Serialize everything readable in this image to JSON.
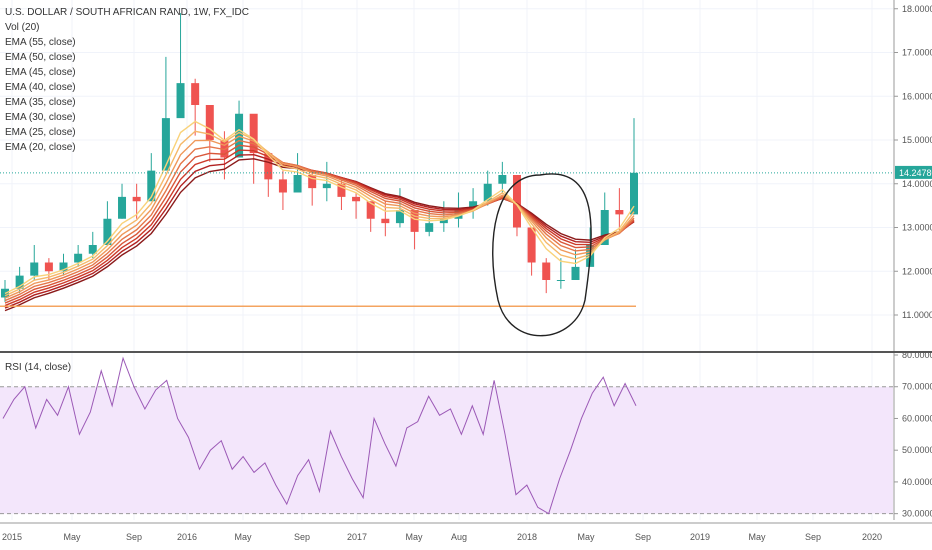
{
  "chart_data": [
    {
      "type": "candlestick",
      "title": "U.S. DOLLAR / SOUTH AFRICAN RAND, 1W, FX_IDC",
      "indicators": [
        "Vol (20)",
        "EMA (55, close)",
        "EMA (50, close)",
        "EMA (45, close)",
        "EMA (40, close)",
        "EMA (35, close)",
        "EMA (30, close)",
        "EMA (25, close)",
        "EMA (20, close)"
      ],
      "y_ticks": [
        "18.00000",
        "17.00000",
        "16.00000",
        "15.00000",
        "14.00000",
        "13.00000",
        "12.00000",
        "11.00000"
      ],
      "ylim": [
        10.2,
        18.2
      ],
      "last_price": "14.24780",
      "last_price_value": 14.2478,
      "support_level": 11.2,
      "x": [
        "2015-01",
        "2015-02",
        "2015-03",
        "2015-04",
        "2015-05",
        "2015-06",
        "2015-07",
        "2015-08",
        "2015-09",
        "2015-10",
        "2015-11",
        "2015-12",
        "2016-01",
        "2016-02",
        "2016-03",
        "2016-04",
        "2016-05",
        "2016-06",
        "2016-07",
        "2016-08",
        "2016-09",
        "2016-10",
        "2016-11",
        "2016-12",
        "2017-01",
        "2017-02",
        "2017-03",
        "2017-04",
        "2017-05",
        "2017-06",
        "2017-07",
        "2017-08",
        "2017-09",
        "2017-10",
        "2017-11",
        "2017-12",
        "2018-01",
        "2018-02",
        "2018-03",
        "2018-04",
        "2018-05",
        "2018-06",
        "2018-07",
        "2018-08"
      ],
      "close": [
        11.6,
        11.9,
        12.2,
        12.0,
        12.2,
        12.4,
        12.6,
        13.2,
        13.7,
        13.6,
        14.3,
        15.5,
        16.3,
        15.8,
        15.0,
        14.6,
        15.6,
        14.7,
        14.1,
        13.8,
        14.2,
        13.9,
        14.0,
        13.7,
        13.6,
        13.2,
        13.1,
        13.4,
        12.9,
        13.1,
        13.2,
        13.4,
        13.6,
        14.0,
        14.2,
        13.0,
        12.2,
        11.8,
        11.8,
        12.1,
        12.6,
        13.4,
        13.3,
        14.25
      ],
      "high": [
        11.8,
        12.1,
        12.6,
        12.3,
        12.4,
        12.6,
        12.9,
        13.6,
        14.0,
        14.0,
        14.7,
        16.9,
        17.9,
        16.4,
        15.6,
        15.2,
        15.9,
        15.3,
        14.6,
        14.3,
        14.7,
        14.3,
        14.5,
        14.1,
        13.8,
        13.5,
        13.6,
        13.9,
        13.3,
        13.4,
        13.6,
        13.8,
        13.9,
        14.3,
        14.5,
        14.1,
        12.8,
        12.3,
        12.3,
        12.5,
        13.0,
        13.8,
        13.9,
        15.5
      ],
      "low": [
        11.3,
        11.5,
        11.8,
        11.8,
        11.9,
        12.1,
        12.3,
        12.6,
        13.2,
        13.2,
        13.8,
        14.8,
        15.6,
        15.1,
        14.5,
        14.1,
        14.8,
        14.0,
        13.7,
        13.4,
        13.8,
        13.5,
        13.6,
        13.4,
        13.2,
        12.9,
        12.8,
        13.0,
        12.5,
        12.8,
        12.9,
        13.0,
        13.2,
        13.5,
        13.8,
        12.8,
        11.9,
        11.5,
        11.6,
        11.8,
        12.2,
        12.8,
        12.9,
        13.3
      ],
      "annotations": [
        "hand-drawn circle around early-2018 dip"
      ]
    },
    {
      "type": "line",
      "title": "RSI (14, close)",
      "y_ticks": [
        "80.00000",
        "70.00000",
        "60.00000",
        "50.00000",
        "40.00000",
        "30.00000"
      ],
      "ylim": [
        28,
        80
      ],
      "band": [
        30,
        70
      ],
      "x_ticks": [
        "2015",
        "May",
        "Sep",
        "2016",
        "May",
        "Sep",
        "2017",
        "May",
        "Aug",
        "2018",
        "May",
        "Sep",
        "2019",
        "May",
        "Sep",
        "2020"
      ],
      "values": [
        60,
        66,
        70,
        57,
        66,
        61,
        70,
        55,
        62,
        75,
        64,
        79,
        70,
        63,
        69,
        72,
        60,
        54,
        44,
        50,
        53,
        44,
        48,
        43,
        46,
        39,
        33,
        42,
        47,
        37,
        56,
        48,
        41,
        35,
        60,
        52,
        45,
        57,
        59,
        67,
        61,
        63,
        55,
        64,
        55,
        72,
        55,
        36,
        39,
        32,
        30,
        41,
        50,
        60,
        68,
        73,
        64,
        71,
        64
      ]
    }
  ]
}
